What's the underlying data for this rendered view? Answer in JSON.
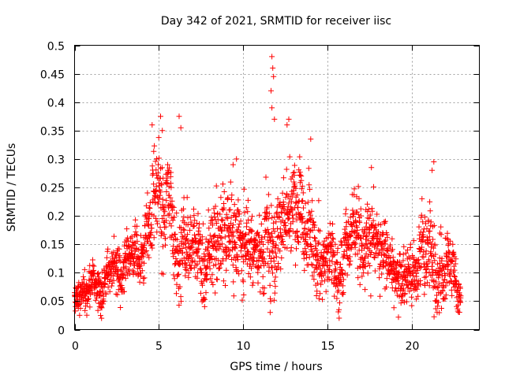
{
  "chart_data": {
    "type": "scatter",
    "title": "Day 342 of 2021, SRMTID for receiver iisc",
    "xlabel": "GPS time / hours",
    "ylabel": "SRMTID / TECUs",
    "xlim": [
      0,
      24
    ],
    "ylim": [
      0,
      0.5
    ],
    "x_ticks": [
      0,
      5,
      10,
      15,
      20
    ],
    "x_tick_labels": [
      "0",
      "5",
      "10",
      "15",
      "20"
    ],
    "y_ticks": [
      0,
      0.05,
      0.1,
      0.15,
      0.2,
      0.25,
      0.3,
      0.35,
      0.4,
      0.45,
      0.5
    ],
    "y_tick_labels": [
      "0",
      "0.05",
      "0.1",
      "0.15",
      "0.2",
      "0.25",
      "0.3",
      "0.35",
      "0.4",
      "0.45",
      "0.5"
    ],
    "grid": true,
    "marker": "plus",
    "color": "#ff0000",
    "trend": {
      "x": [
        0,
        0.5,
        1,
        1.5,
        2,
        2.5,
        3,
        3.5,
        4,
        4.5,
        5,
        5.5,
        6,
        6.5,
        7,
        7.5,
        8,
        8.5,
        9,
        9.5,
        10,
        10.5,
        11,
        11.5,
        12,
        12.5,
        13,
        13.5,
        14,
        14.5,
        15,
        15.5,
        16,
        16.5,
        17,
        17.5,
        18,
        18.5,
        19,
        19.5,
        20,
        20.5,
        21,
        21.5,
        22,
        22.5,
        23
      ],
      "center": [
        0.05,
        0.06,
        0.065,
        0.06,
        0.08,
        0.1,
        0.1,
        0.12,
        0.14,
        0.17,
        0.22,
        0.2,
        0.16,
        0.15,
        0.13,
        0.14,
        0.15,
        0.16,
        0.17,
        0.14,
        0.12,
        0.13,
        0.12,
        0.15,
        0.19,
        0.2,
        0.21,
        0.18,
        0.14,
        0.12,
        0.11,
        0.11,
        0.13,
        0.16,
        0.17,
        0.16,
        0.15,
        0.12,
        0.1,
        0.09,
        0.08,
        0.11,
        0.12,
        0.12,
        0.1,
        0.09,
        0.07
      ],
      "spread": [
        0.02,
        0.025,
        0.03,
        0.03,
        0.035,
        0.04,
        0.04,
        0.04,
        0.045,
        0.06,
        0.08,
        0.07,
        0.07,
        0.06,
        0.055,
        0.055,
        0.06,
        0.06,
        0.07,
        0.07,
        0.06,
        0.06,
        0.06,
        0.1,
        0.07,
        0.07,
        0.07,
        0.065,
        0.06,
        0.05,
        0.05,
        0.05,
        0.05,
        0.06,
        0.06,
        0.06,
        0.05,
        0.045,
        0.04,
        0.04,
        0.04,
        0.05,
        0.07,
        0.06,
        0.05,
        0.045,
        0.04
      ]
    },
    "highlights": [
      {
        "x": 11.7,
        "y": 0.48
      },
      {
        "x": 11.75,
        "y": 0.46
      },
      {
        "x": 11.8,
        "y": 0.445
      },
      {
        "x": 11.65,
        "y": 0.42
      },
      {
        "x": 11.7,
        "y": 0.39
      },
      {
        "x": 11.85,
        "y": 0.37
      },
      {
        "x": 4.6,
        "y": 0.36
      },
      {
        "x": 5.1,
        "y": 0.375
      },
      {
        "x": 5.2,
        "y": 0.35
      },
      {
        "x": 6.2,
        "y": 0.375
      },
      {
        "x": 6.3,
        "y": 0.355
      },
      {
        "x": 12.6,
        "y": 0.36
      },
      {
        "x": 12.7,
        "y": 0.37
      },
      {
        "x": 14.0,
        "y": 0.335
      },
      {
        "x": 9.6,
        "y": 0.3
      },
      {
        "x": 9.4,
        "y": 0.29
      },
      {
        "x": 17.6,
        "y": 0.285
      },
      {
        "x": 21.3,
        "y": 0.295
      },
      {
        "x": 21.2,
        "y": 0.28
      },
      {
        "x": 20.6,
        "y": 0.23
      },
      {
        "x": 11.6,
        "y": 0.03
      },
      {
        "x": 1.6,
        "y": 0.02
      },
      {
        "x": 0.3,
        "y": 0.025
      }
    ]
  }
}
